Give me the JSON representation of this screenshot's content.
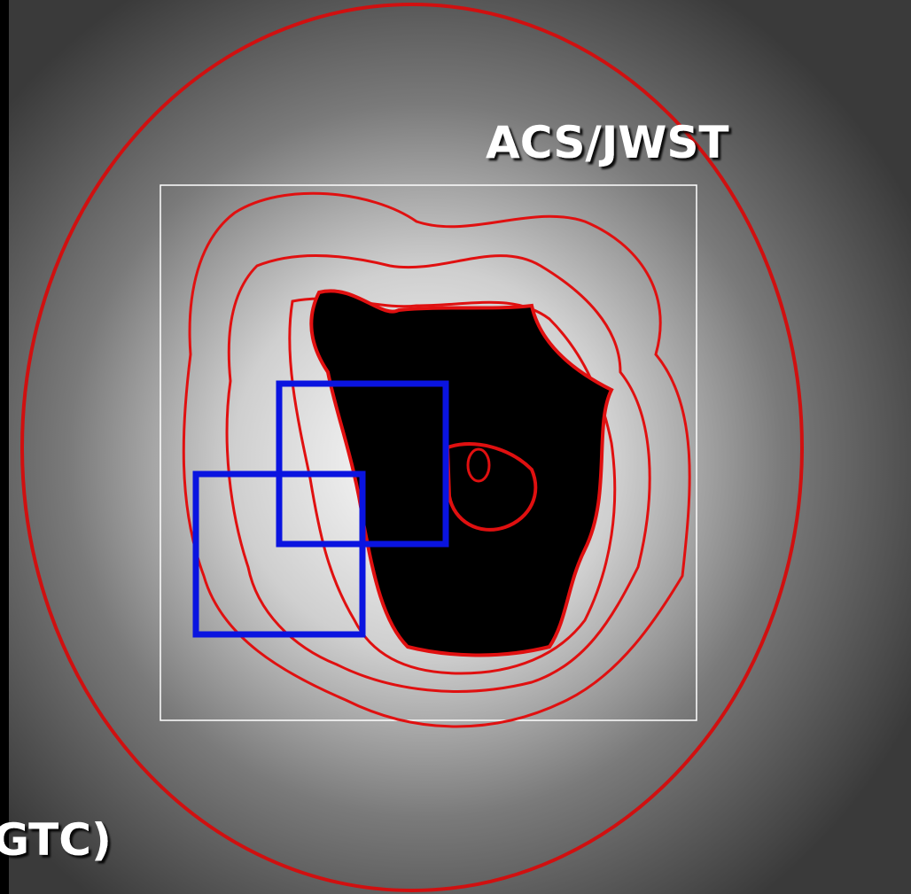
{
  "labels": {
    "instrument": "ACS/JWST",
    "telescope": "GTC)"
  }
}
